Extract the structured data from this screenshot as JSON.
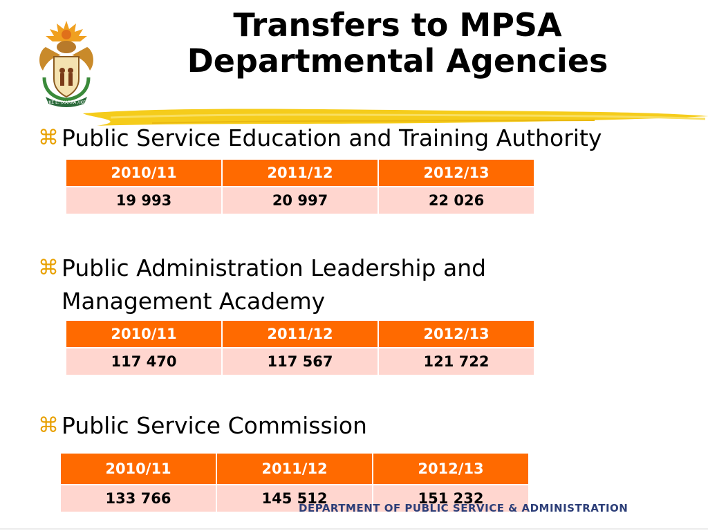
{
  "slide": {
    "title_line1": "Transfers to MPSA",
    "title_line2": "Departmental Agencies",
    "footer": "DEPARTMENT OF PUBLIC SERVICE & ADMINISTRATION",
    "logo_motto": "!KE E: /XARRA //KE"
  },
  "colors": {
    "header_bg": "#ff6a00",
    "row_bg": "#ffd6cf",
    "bullet_mark": "#e8a000",
    "brush": "#f5cc1b",
    "footer_text": "#2c3e78"
  },
  "sections": [
    {
      "bullet_icon": "command-key-bullet-icon",
      "label": "Public Service Education and Training Authority",
      "headers": [
        "2010/11",
        "2011/12",
        "2012/13"
      ],
      "values": [
        "19 993",
        "20 997",
        "22 026"
      ]
    },
    {
      "bullet_icon": "command-key-bullet-icon",
      "label": "Public Administration Leadership and Management Academy",
      "headers": [
        "2010/11",
        "2011/12",
        "2012/13"
      ],
      "values": [
        "117 470",
        "117 567",
        "121 722"
      ]
    },
    {
      "bullet_icon": "command-key-bullet-icon",
      "label": "Public Service Commission",
      "headers": [
        "2010/11",
        "2011/12",
        "2012/13"
      ],
      "values": [
        "133 766",
        "145 512",
        "151 232"
      ]
    }
  ]
}
